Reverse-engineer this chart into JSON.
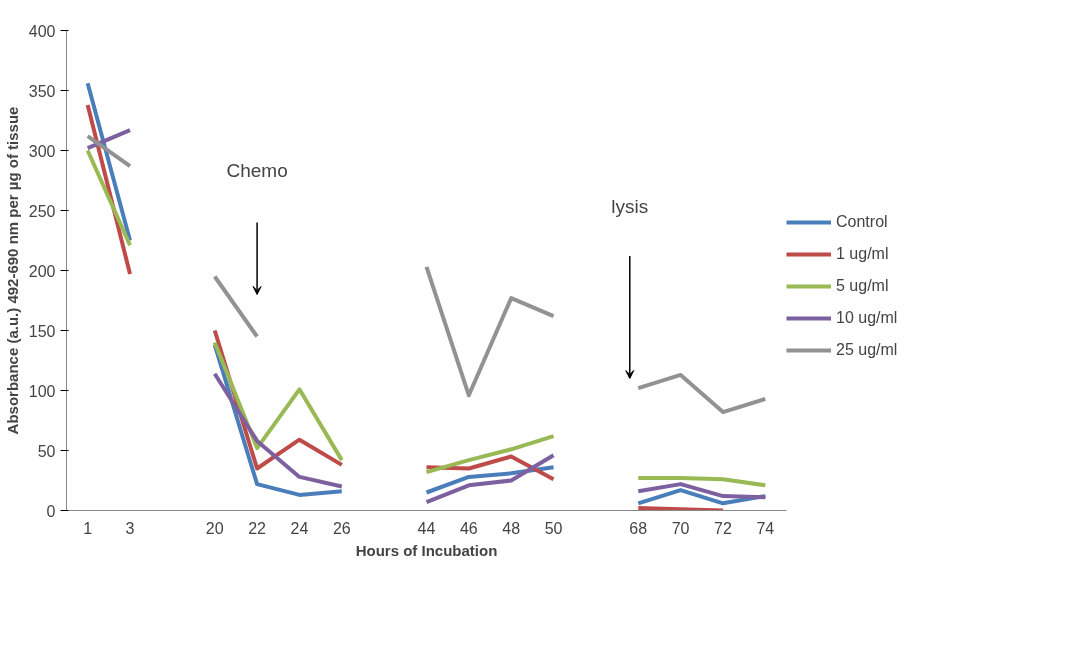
{
  "chart_data": {
    "type": "line",
    "xlabel": "Hours of Incubation",
    "ylabel": "Absorbance (a.u.) 492-690 nm per µg of tissue",
    "categories": [
      "1",
      "3",
      null,
      "20",
      "22",
      "24",
      "26",
      null,
      "44",
      "46",
      "48",
      "50",
      null,
      "68",
      "70",
      "72",
      "74"
    ],
    "series": [
      {
        "name": "Control",
        "color": "#4a7ebb",
        "values": [
          356,
          225,
          null,
          138,
          22,
          13,
          16,
          null,
          15,
          28,
          31,
          36,
          null,
          6,
          17,
          6,
          12
        ]
      },
      {
        "name": "1 ug/ml",
        "color": "#be4b48",
        "values": [
          338,
          197,
          null,
          150,
          35,
          59,
          38,
          null,
          36,
          35,
          45,
          26,
          null,
          2,
          1,
          0,
          null
        ]
      },
      {
        "name": "5 ug/ml",
        "color": "#98b954",
        "values": [
          300,
          221,
          null,
          140,
          52,
          101,
          42,
          null,
          32,
          42,
          51,
          62,
          null,
          27,
          27,
          26,
          21
        ]
      },
      {
        "name": "10 ug/ml",
        "color": "#7d60a0",
        "values": [
          302,
          317,
          null,
          114,
          58,
          28,
          20,
          null,
          7,
          21,
          25,
          46,
          null,
          16,
          22,
          12,
          11
        ]
      },
      {
        "name": "25 ug/ml",
        "color": "#929292",
        "values": [
          312,
          287,
          null,
          195,
          145,
          null,
          null,
          null,
          203,
          96,
          177,
          162,
          null,
          102,
          113,
          82,
          93
        ]
      }
    ],
    "ylim": [
      0,
      400
    ],
    "yticks": [
      0,
      50,
      100,
      150,
      200,
      250,
      300,
      350,
      400
    ],
    "annotations": [
      "Chemo",
      "lysis"
    ],
    "legend": "right",
    "grid": false,
    "marker": "none",
    "line_style": "solid"
  }
}
